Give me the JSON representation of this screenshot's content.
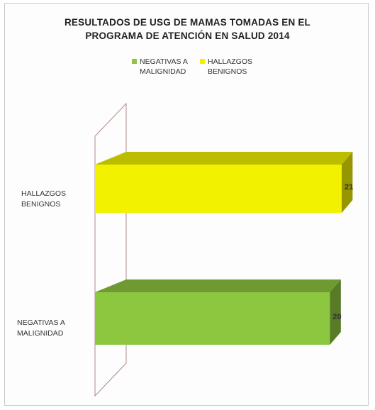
{
  "chart_data": {
    "type": "bar",
    "orientation": "horizontal",
    "title": "RESULTADOS DE USG DE MAMAS TOMADAS EN EL\nPROGRAMA DE ATENCIÓN EN SALUD 2014",
    "categories": [
      "NEGATIVAS A\nMALIGNIDAD",
      "HALLAZGOS\nBENIGNOS"
    ],
    "series": [
      {
        "name": "NEGATIVAS A\nMALIGNIDAD",
        "color": "#8dc63f",
        "values": [
          20,
          null
        ]
      },
      {
        "name": "HALLAZGOS\nBENIGNOS",
        "color": "#f2f200",
        "values": [
          null,
          21
        ]
      }
    ],
    "data_labels": [
      "20",
      "21"
    ],
    "legend_position": "top",
    "grid": false,
    "style": "3d"
  }
}
